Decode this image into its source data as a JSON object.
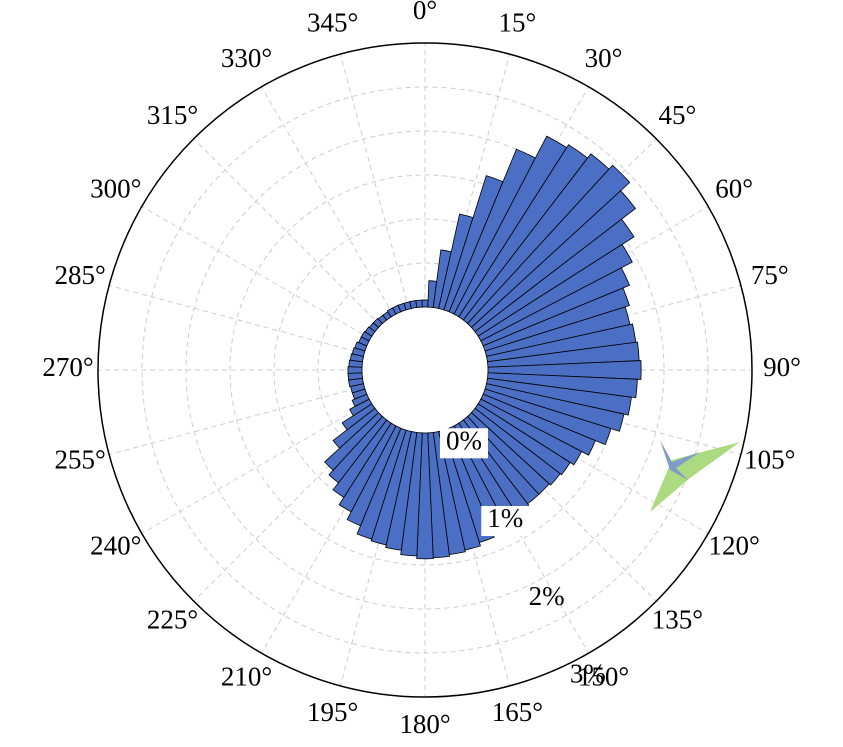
{
  "chart_data": {
    "type": "polar-bar",
    "theta": [
      0,
      5,
      10,
      15,
      20,
      25,
      30,
      35,
      40,
      45,
      50,
      55,
      60,
      65,
      70,
      75,
      80,
      85,
      90,
      95,
      100,
      105,
      110,
      115,
      120,
      125,
      130,
      135,
      140,
      145,
      150,
      155,
      160,
      165,
      170,
      175,
      180,
      185,
      190,
      195,
      200,
      205,
      210,
      215,
      220,
      225,
      230,
      235,
      240,
      245,
      250,
      255,
      260,
      265,
      270,
      275,
      280,
      285,
      290,
      295,
      300,
      305,
      310,
      315,
      320,
      325,
      330,
      335,
      340,
      345,
      350,
      355
    ],
    "values": [
      0.08,
      0.3,
      0.66,
      1.1,
      1.6,
      2.0,
      2.28,
      2.32,
      2.38,
      2.44,
      2.3,
      2.1,
      1.94,
      1.8,
      1.72,
      1.67,
      1.7,
      1.72,
      1.74,
      1.7,
      1.65,
      1.6,
      1.5,
      1.38,
      1.29,
      1.24,
      1.22,
      1.2,
      1.2,
      1.22,
      1.24,
      1.3,
      1.34,
      1.38,
      1.4,
      1.42,
      1.43,
      1.4,
      1.35,
      1.32,
      1.3,
      1.2,
      1.1,
      1.0,
      0.9,
      0.83,
      0.6,
      0.4,
      0.25,
      0.18,
      0.15,
      0.15,
      0.16,
      0.16,
      0.16,
      0.15,
      0.14,
      0.13,
      0.12,
      0.1,
      0.1,
      0.09,
      0.08,
      0.08,
      0.07,
      0.07,
      0.08,
      0.08,
      0.08,
      0.08,
      0.08,
      0.08
    ],
    "color": "#4a6fc4",
    "rlim": [
      0,
      3
    ],
    "rticks": [
      {
        "value": 0,
        "label": "0%"
      },
      {
        "value": 1,
        "label": "1%"
      },
      {
        "value": 2,
        "label": "2%"
      },
      {
        "value": 3,
        "label": "3%"
      }
    ],
    "thetaticks": [
      {
        "value": 0,
        "label": "0°"
      },
      {
        "value": 15,
        "label": "15°"
      },
      {
        "value": 30,
        "label": "30°"
      },
      {
        "value": 45,
        "label": "45°"
      },
      {
        "value": 60,
        "label": "60°"
      },
      {
        "value": 75,
        "label": "75°"
      },
      {
        "value": 90,
        "label": "90°"
      },
      {
        "value": 105,
        "label": "105°"
      },
      {
        "value": 120,
        "label": "120°"
      },
      {
        "value": 135,
        "label": "135°"
      },
      {
        "value": 150,
        "label": "150°"
      },
      {
        "value": 165,
        "label": "165°"
      },
      {
        "value": 180,
        "label": "180°"
      },
      {
        "value": 195,
        "label": "195°"
      },
      {
        "value": 210,
        "label": "210°"
      },
      {
        "value": 225,
        "label": "225°"
      },
      {
        "value": 240,
        "label": "240°"
      },
      {
        "value": 255,
        "label": "255°"
      },
      {
        "value": 270,
        "label": "270°"
      },
      {
        "value": 285,
        "label": "285°"
      },
      {
        "value": 300,
        "label": "300°"
      },
      {
        "value": 315,
        "label": "315°"
      },
      {
        "value": 330,
        "label": "330°"
      },
      {
        "value": 345,
        "label": "345°"
      }
    ],
    "grid": true
  }
}
